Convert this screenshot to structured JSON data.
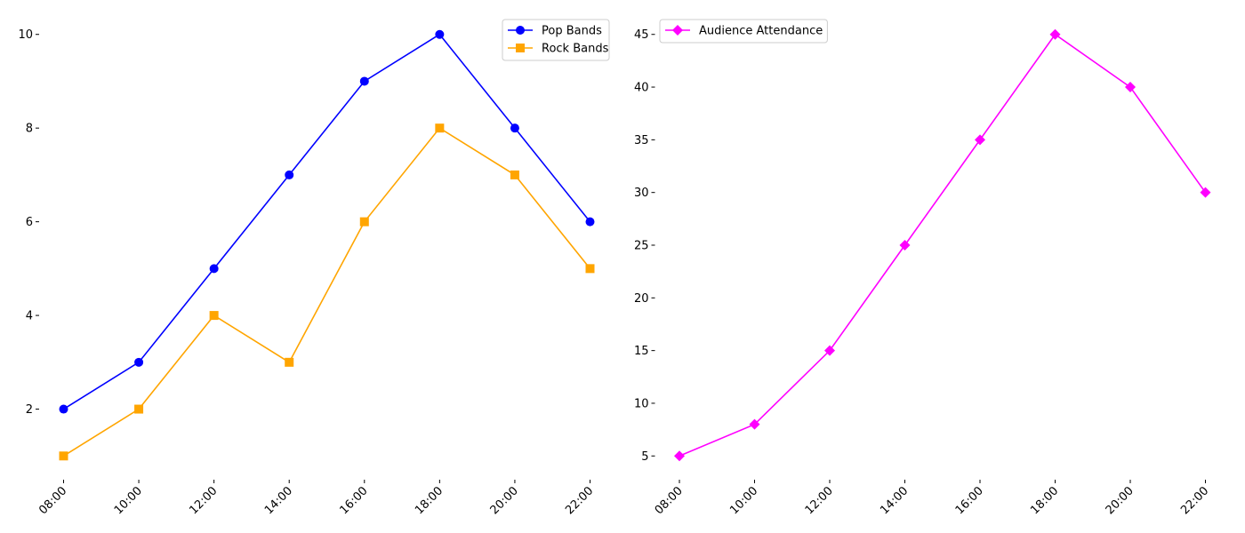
{
  "chart_data": [
    {
      "type": "line",
      "categories": [
        "08:00",
        "10:00",
        "12:00",
        "14:00",
        "16:00",
        "18:00",
        "20:00",
        "22:00"
      ],
      "series": [
        {
          "name": "Pop Bands",
          "values": [
            2,
            3,
            5,
            7,
            9,
            10,
            8,
            6
          ],
          "color": "#0000ff",
          "marker": "circle"
        },
        {
          "name": "Rock Bands",
          "values": [
            1,
            2,
            4,
            3,
            6,
            8,
            7,
            5
          ],
          "color": "#ffa500",
          "marker": "square"
        }
      ],
      "yticks": [
        2,
        4,
        6,
        8,
        10
      ],
      "ylim": [
        0.55,
        10.45
      ],
      "legend": "top-right",
      "grid": false,
      "spines": false,
      "xtick_rotation": 45
    },
    {
      "type": "line",
      "categories": [
        "08:00",
        "10:00",
        "12:00",
        "14:00",
        "16:00",
        "18:00",
        "20:00",
        "22:00"
      ],
      "series": [
        {
          "name": "Audience Attendance",
          "values": [
            5,
            8,
            15,
            25,
            35,
            45,
            40,
            30
          ],
          "color": "#ff00ff",
          "marker": "diamond"
        }
      ],
      "yticks": [
        5,
        10,
        15,
        20,
        25,
        30,
        35,
        40,
        45
      ],
      "ylim": [
        3,
        47
      ],
      "legend": "top-left",
      "grid": false,
      "spines": false,
      "xtick_rotation": 45
    }
  ]
}
